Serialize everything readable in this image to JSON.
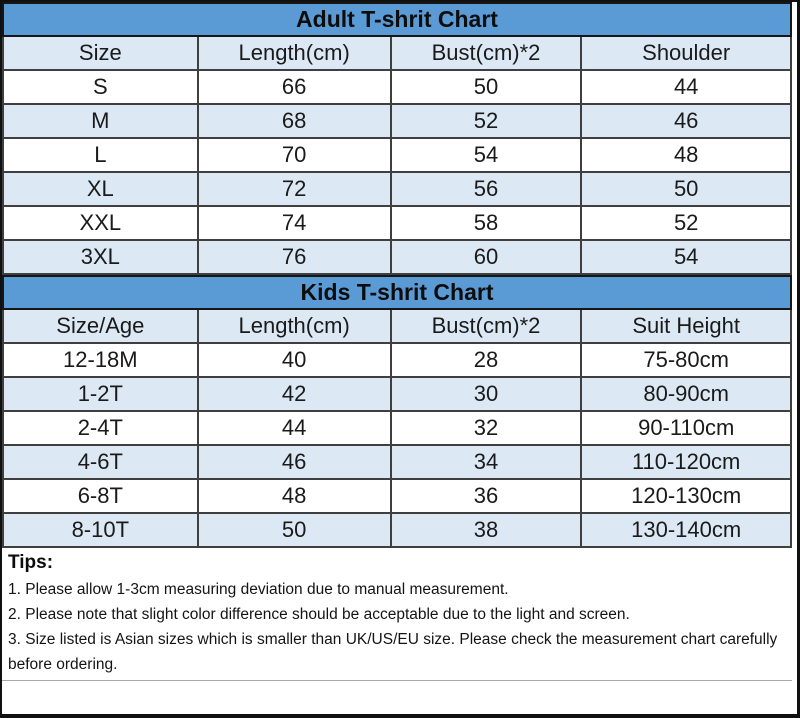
{
  "colors": {
    "title_bar_blue": "#5b9bd5",
    "alt_row_blue": "#dce9f5",
    "grid_border": "#3f3f3f",
    "text": "#1a1a1a"
  },
  "chart_data": [
    {
      "type": "table",
      "title": "Adult T-shrit Chart",
      "columns": [
        "Size",
        "Length(cm)",
        "Bust(cm)*2",
        "Shoulder"
      ],
      "rows": [
        [
          "S",
          "66",
          "50",
          "44"
        ],
        [
          "M",
          "68",
          "52",
          "46"
        ],
        [
          "L",
          "70",
          "54",
          "48"
        ],
        [
          "XL",
          "72",
          "56",
          "50"
        ],
        [
          "XXL",
          "74",
          "58",
          "52"
        ],
        [
          "3XL",
          "76",
          "60",
          "54"
        ]
      ]
    },
    {
      "type": "table",
      "title": "Kids T-shrit Chart",
      "columns": [
        "Size/Age",
        "Length(cm)",
        "Bust(cm)*2",
        "Suit Height"
      ],
      "rows": [
        [
          "12-18M",
          "40",
          "28",
          "75-80cm"
        ],
        [
          "1-2T",
          "42",
          "30",
          "80-90cm"
        ],
        [
          "2-4T",
          "44",
          "32",
          "90-110cm"
        ],
        [
          "4-6T",
          "46",
          "34",
          "110-120cm"
        ],
        [
          "6-8T",
          "48",
          "36",
          "120-130cm"
        ],
        [
          "8-10T",
          "50",
          "38",
          "130-140cm"
        ]
      ]
    }
  ],
  "tips": {
    "heading": "Tips:",
    "items": [
      "1. Please allow 1-3cm measuring deviation due to manual measurement.",
      "2. Please note that slight color difference should be acceptable due to the light and screen.",
      "3. Size listed is Asian sizes which is smaller than UK/US/EU size. Please check the measurement chart carefully before ordering."
    ]
  }
}
